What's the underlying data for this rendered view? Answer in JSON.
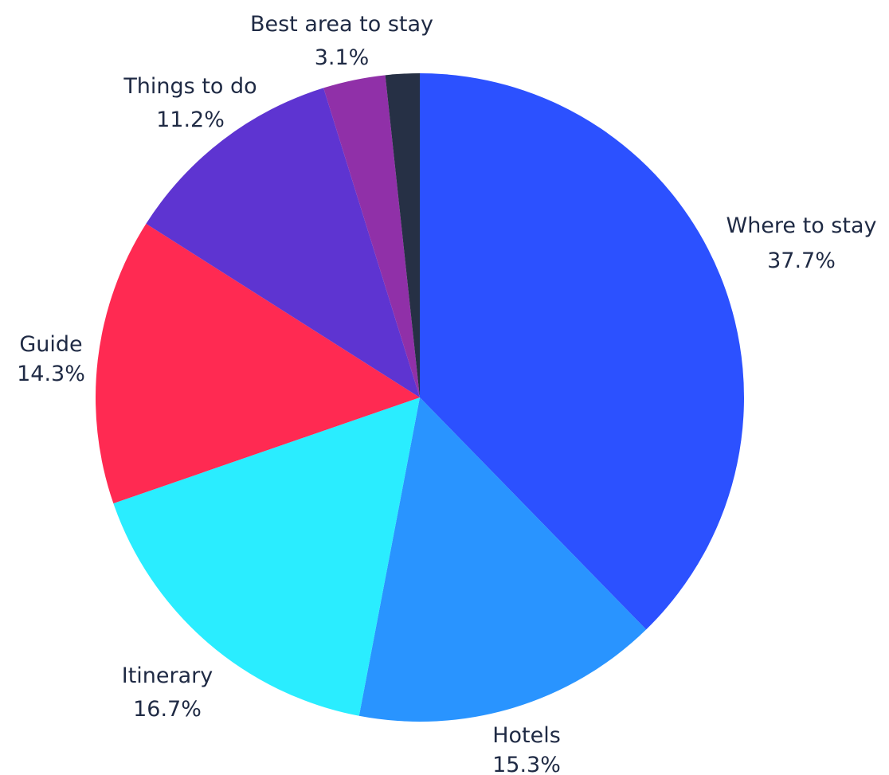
{
  "chart_data": {
    "type": "pie",
    "title": "",
    "start": "top",
    "direction": "clockwise",
    "slices": [
      {
        "label": "Where to stay",
        "value": 37.7,
        "value_label": "37.7%",
        "color": "#2c51ff"
      },
      {
        "label": "Hotels",
        "value": 15.3,
        "value_label": "15.3%",
        "color": "#2994ff"
      },
      {
        "label": "Itinerary",
        "value": 16.7,
        "value_label": "16.7%",
        "color": "#2aedff"
      },
      {
        "label": "Guide",
        "value": 14.3,
        "value_label": "14.3%",
        "color": "#ff2a52"
      },
      {
        "label": "Things to do",
        "value": 11.2,
        "value_label": "11.2%",
        "color": "#5e34d1"
      },
      {
        "label": "Best area to stay",
        "value": 3.1,
        "value_label": "3.1%",
        "color": "#9030a8"
      },
      {
        "label": "",
        "value": 1.7,
        "value_label": "",
        "color": "#263045"
      }
    ]
  }
}
